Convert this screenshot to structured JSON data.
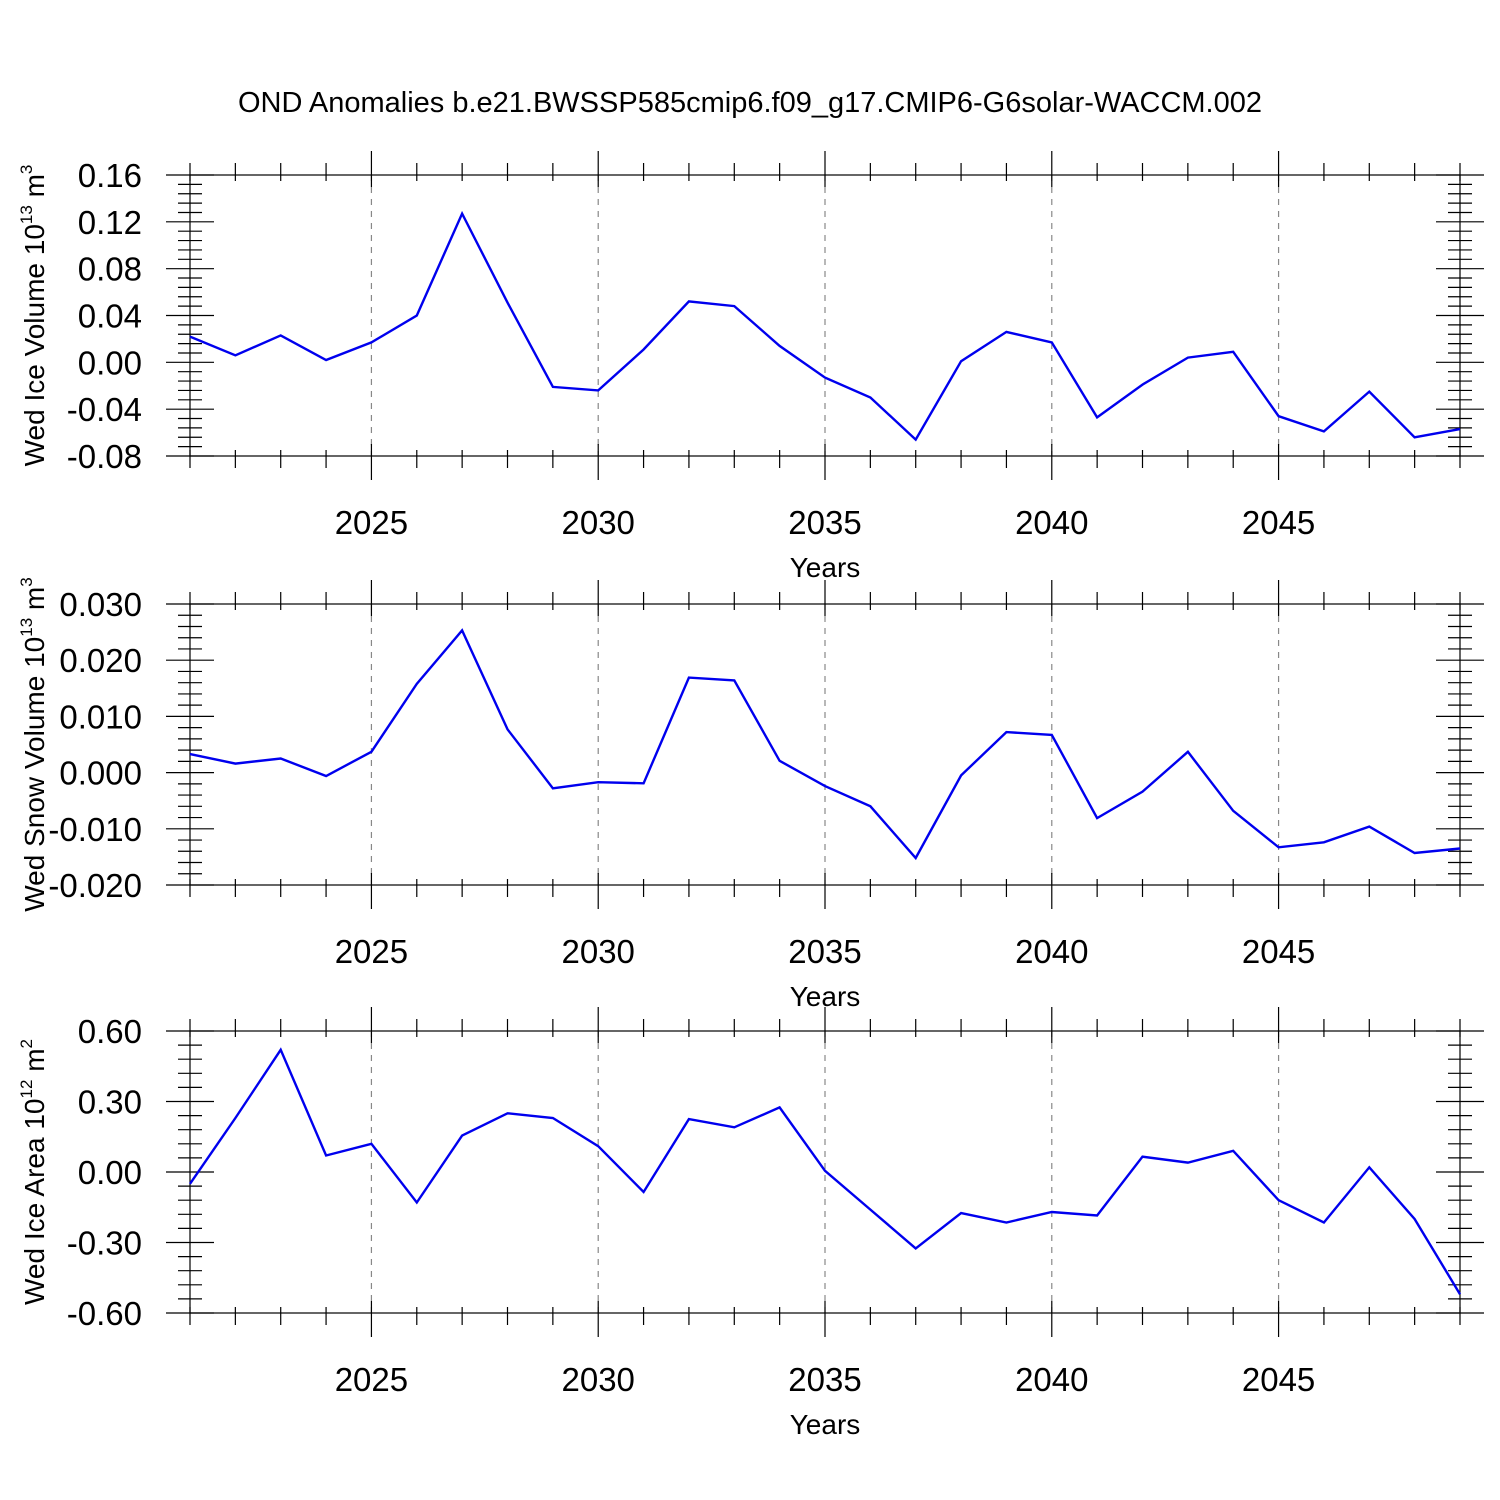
{
  "title": "OND Anomalies b.e21.BWSSP585cmip6.f09_g17.CMIP6-G6solar-WACCM.002",
  "colors": {
    "line": "#0000ee",
    "grid": "#888888",
    "axis": "#000000"
  },
  "chart_data": [
    {
      "type": "line",
      "ylabel": {
        "main": "Wed Ice Volume 10",
        "sup": "13",
        "unit": " m",
        "unit_sup": "3"
      },
      "xlabel": "Years",
      "xlim": [
        2021,
        2049
      ],
      "ylim": [
        -0.08,
        0.16
      ],
      "xticks": [
        2025,
        2030,
        2035,
        2040,
        2045
      ],
      "yticks": [
        -0.08,
        -0.04,
        0.0,
        0.04,
        0.08,
        0.12,
        0.16
      ],
      "ytick_labels": [
        "-0.08",
        "-0.04",
        "0.00",
        "0.04",
        "0.08",
        "0.12",
        "0.16"
      ],
      "grid": "vertical dashed at major x ticks",
      "x": [
        2021,
        2022,
        2023,
        2024,
        2025,
        2026,
        2027,
        2028,
        2029,
        2030,
        2031,
        2032,
        2033,
        2034,
        2035,
        2036,
        2037,
        2038,
        2039,
        2040,
        2041,
        2042,
        2043,
        2044,
        2045,
        2046,
        2047,
        2048,
        2049
      ],
      "y": [
        0.022,
        0.006,
        0.023,
        0.002,
        0.017,
        0.04,
        0.127,
        0.051,
        -0.021,
        -0.024,
        0.011,
        0.052,
        0.048,
        0.014,
        -0.013,
        -0.03,
        -0.066,
        0.001,
        0.026,
        0.017,
        -0.047,
        -0.019,
        0.004,
        0.009,
        -0.046,
        -0.059,
        -0.025,
        -0.064,
        -0.057
      ]
    },
    {
      "type": "line",
      "ylabel": {
        "main": "Wed Snow Volume 10",
        "sup": "13",
        "unit": " m",
        "unit_sup": "3"
      },
      "xlabel": "Years",
      "xlim": [
        2021,
        2049
      ],
      "ylim": [
        -0.02,
        0.03
      ],
      "xticks": [
        2025,
        2030,
        2035,
        2040,
        2045
      ],
      "yticks": [
        -0.02,
        -0.01,
        0.0,
        0.01,
        0.02,
        0.03
      ],
      "ytick_labels": [
        "-0.020",
        "-0.010",
        "0.000",
        "0.010",
        "0.020",
        "0.030"
      ],
      "grid": "vertical dashed at major x ticks",
      "x": [
        2021,
        2022,
        2023,
        2024,
        2025,
        2026,
        2027,
        2028,
        2029,
        2030,
        2031,
        2032,
        2033,
        2034,
        2035,
        2036,
        2037,
        2038,
        2039,
        2040,
        2041,
        2042,
        2043,
        2044,
        2045,
        2046,
        2047,
        2048,
        2049
      ],
      "y": [
        0.0033,
        0.0016,
        0.0025,
        -0.0006,
        0.0037,
        0.0158,
        0.0253,
        0.0077,
        -0.0028,
        -0.0017,
        -0.0019,
        0.0169,
        0.0164,
        0.0021,
        -0.0024,
        -0.006,
        -0.0152,
        -0.0005,
        0.0072,
        0.0067,
        -0.0081,
        -0.0034,
        0.0037,
        -0.0068,
        -0.0133,
        -0.0124,
        -0.0096,
        -0.0143,
        -0.0135
      ]
    },
    {
      "type": "line",
      "ylabel": {
        "main": "Wed Ice Area 10",
        "sup": "12",
        "unit": " m",
        "unit_sup": "2"
      },
      "xlabel": "Years",
      "xlim": [
        2021,
        2049
      ],
      "ylim": [
        -0.6,
        0.6
      ],
      "xticks": [
        2025,
        2030,
        2035,
        2040,
        2045
      ],
      "yticks": [
        -0.6,
        -0.3,
        0.0,
        0.3,
        0.6
      ],
      "ytick_labels": [
        "-0.60",
        "-0.30",
        "0.00",
        "0.30",
        "0.60"
      ],
      "grid": "vertical dashed at major x ticks",
      "x": [
        2021,
        2022,
        2023,
        2024,
        2025,
        2026,
        2027,
        2028,
        2029,
        2030,
        2031,
        2032,
        2033,
        2034,
        2035,
        2036,
        2037,
        2038,
        2039,
        2040,
        2041,
        2042,
        2043,
        2044,
        2045,
        2046,
        2047,
        2048,
        2049
      ],
      "y": [
        -0.05,
        0.23,
        0.52,
        0.07,
        0.12,
        -0.13,
        0.155,
        0.25,
        0.23,
        0.11,
        -0.085,
        0.225,
        0.19,
        0.275,
        0.005,
        -0.16,
        -0.325,
        -0.175,
        -0.215,
        -0.17,
        -0.185,
        0.065,
        0.04,
        0.09,
        -0.12,
        -0.215,
        0.02,
        -0.2,
        -0.52
      ]
    }
  ]
}
